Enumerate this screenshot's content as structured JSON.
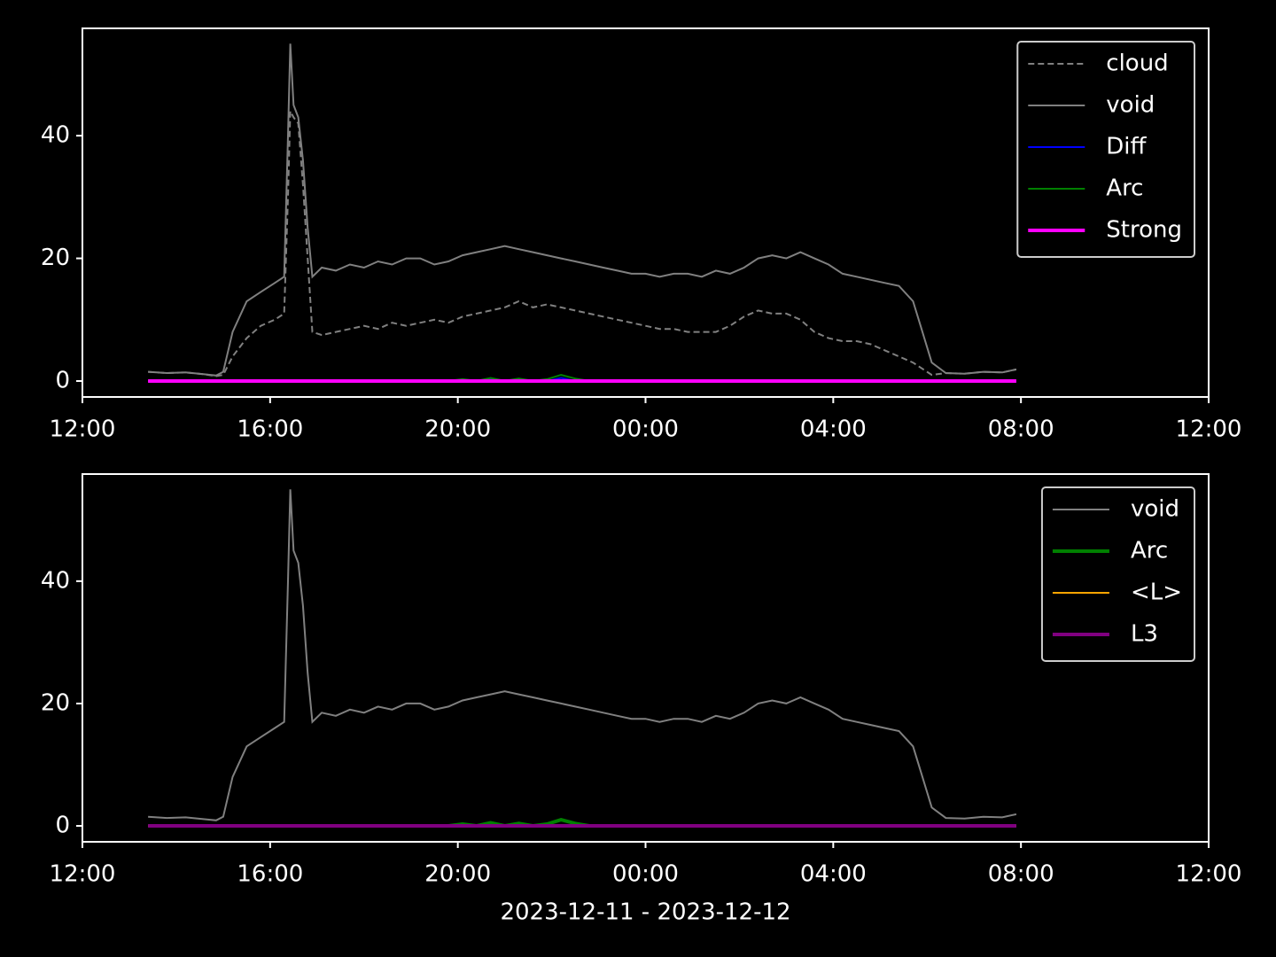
{
  "chart_data": [
    {
      "type": "line",
      "x": [
        1.4,
        1.8,
        2.2,
        2.6,
        2.85,
        3.0,
        3.2,
        3.5,
        3.8,
        4.1,
        4.3,
        4.38,
        4.43,
        4.5,
        4.6,
        4.7,
        4.8,
        4.9,
        5.1,
        5.4,
        5.7,
        6.0,
        6.3,
        6.6,
        6.9,
        7.2,
        7.5,
        7.8,
        8.1,
        8.4,
        8.7,
        9.0,
        9.3,
        9.6,
        9.9,
        10.2,
        10.5,
        10.8,
        11.1,
        11.4,
        11.7,
        12.0,
        12.3,
        12.6,
        12.9,
        13.2,
        13.5,
        13.8,
        14.1,
        14.4,
        14.7,
        15.0,
        15.3,
        15.6,
        15.9,
        16.2,
        16.5,
        16.8,
        17.1,
        17.4,
        17.7,
        17.9,
        18.1,
        18.4,
        18.8,
        19.2,
        19.6,
        19.9
      ],
      "series": [
        {
          "name": "cloud",
          "color": "#808080",
          "linestyle": "dashed",
          "width": "thin",
          "values": [
            1.5,
            1.3,
            1.4,
            1.1,
            0.8,
            1.0,
            4,
            7,
            9,
            10,
            11,
            30,
            44,
            43,
            42,
            32,
            20,
            8,
            7.5,
            8,
            8.5,
            9,
            8.5,
            9.5,
            9,
            9.5,
            10,
            9.5,
            10.5,
            11,
            11.5,
            12,
            13,
            12,
            12.5,
            12,
            11.5,
            11,
            10.5,
            10,
            9.5,
            9,
            8.5,
            8.5,
            8,
            8,
            8,
            9,
            10.5,
            11.5,
            11,
            11,
            10,
            8,
            7,
            6.5,
            6.5,
            6,
            5,
            4,
            3,
            2,
            1,
            1.3,
            1.2,
            1.5,
            1.4,
            1.9
          ]
        },
        {
          "name": "void",
          "color": "#808080",
          "linestyle": "solid",
          "width": "thin",
          "values": [
            1.5,
            1.3,
            1.4,
            1.1,
            0.9,
            1.5,
            8,
            13,
            14.5,
            16,
            17,
            40,
            55,
            45,
            43,
            36,
            25,
            17,
            18.5,
            18,
            19,
            18.5,
            19.5,
            19,
            20,
            20,
            19,
            19.5,
            20.5,
            21,
            21.5,
            22,
            21.5,
            21,
            20.5,
            20,
            19.5,
            19,
            18.5,
            18,
            17.5,
            17.5,
            17,
            17.5,
            17.5,
            17,
            18,
            17.5,
            18.5,
            20,
            20.5,
            20,
            21,
            20,
            19,
            17.5,
            17,
            16.5,
            16,
            15.5,
            13,
            8,
            3,
            1.3,
            1.2,
            1.5,
            1.4,
            1.9
          ]
        },
        {
          "name": "Diff",
          "color": "#0000ff",
          "linestyle": "solid",
          "width": "thin",
          "values": [
            0,
            0,
            0,
            0,
            0,
            0,
            0,
            0,
            0,
            0,
            0,
            0,
            0,
            0,
            0,
            0,
            0,
            0,
            0,
            0,
            0,
            0,
            0,
            0,
            0,
            0,
            0,
            0,
            0,
            0,
            0.3,
            0,
            0,
            0,
            0,
            0.5,
            0,
            0,
            0,
            0,
            0,
            0,
            0,
            0,
            0,
            0,
            0,
            0,
            0,
            0,
            0,
            0,
            0,
            0,
            0,
            0,
            0,
            0,
            0,
            0,
            0,
            0,
            0,
            0,
            0,
            0,
            0,
            0
          ]
        },
        {
          "name": "Arc",
          "color": "#008000",
          "linestyle": "solid",
          "width": "thin",
          "values": [
            0,
            0,
            0,
            0,
            0,
            0,
            0,
            0,
            0,
            0,
            0,
            0,
            0,
            0,
            0,
            0,
            0,
            0,
            0,
            0,
            0,
            0,
            0,
            0,
            0,
            0,
            0,
            0,
            0.3,
            0,
            0.5,
            0,
            0.4,
            0,
            0.3,
            1.0,
            0.4,
            0,
            0,
            0,
            0,
            0,
            0,
            0,
            0,
            0,
            0,
            0,
            0,
            0,
            0,
            0,
            0,
            0,
            0,
            0,
            0,
            0,
            0,
            0,
            0,
            0,
            0,
            0,
            0,
            0,
            0,
            0
          ]
        },
        {
          "name": "Strong",
          "color": "#ff00ff",
          "linestyle": "solid",
          "width": "thick",
          "values": [
            0,
            0,
            0,
            0,
            0,
            0,
            0,
            0,
            0,
            0,
            0,
            0,
            0,
            0,
            0,
            0,
            0,
            0,
            0,
            0,
            0,
            0,
            0,
            0,
            0,
            0,
            0,
            0,
            0,
            0,
            0,
            0,
            0,
            0,
            0,
            0,
            0,
            0,
            0,
            0,
            0,
            0,
            0,
            0,
            0,
            0,
            0,
            0,
            0,
            0,
            0,
            0,
            0,
            0,
            0,
            0,
            0,
            0,
            0,
            0,
            0,
            0,
            0,
            0,
            0,
            0,
            0,
            0
          ]
        }
      ],
      "xlim": [
        0,
        24
      ],
      "xticks": [
        {
          "value": 0,
          "label": "12:00"
        },
        {
          "value": 4,
          "label": "16:00"
        },
        {
          "value": 8,
          "label": "20:00"
        },
        {
          "value": 12,
          "label": "00:00"
        },
        {
          "value": 16,
          "label": "04:00"
        },
        {
          "value": 20,
          "label": "08:00"
        },
        {
          "value": 24,
          "label": "12:00"
        }
      ],
      "ylim": [
        -2.6,
        57.5
      ],
      "yticks": [
        0,
        20,
        40
      ],
      "legend": "upper right"
    },
    {
      "type": "line",
      "x": [
        1.4,
        1.8,
        2.2,
        2.6,
        2.85,
        3.0,
        3.2,
        3.5,
        3.8,
        4.1,
        4.3,
        4.38,
        4.43,
        4.5,
        4.6,
        4.7,
        4.8,
        4.9,
        5.1,
        5.4,
        5.7,
        6.0,
        6.3,
        6.6,
        6.9,
        7.2,
        7.5,
        7.8,
        8.1,
        8.4,
        8.7,
        9.0,
        9.3,
        9.6,
        9.9,
        10.2,
        10.5,
        10.8,
        11.1,
        11.4,
        11.7,
        12.0,
        12.3,
        12.6,
        12.9,
        13.2,
        13.5,
        13.8,
        14.1,
        14.4,
        14.7,
        15.0,
        15.3,
        15.6,
        15.9,
        16.2,
        16.5,
        16.8,
        17.1,
        17.4,
        17.7,
        17.9,
        18.1,
        18.4,
        18.8,
        19.2,
        19.6,
        19.9
      ],
      "series": [
        {
          "name": "void",
          "color": "#808080",
          "linestyle": "solid",
          "width": "thin",
          "values": [
            1.5,
            1.3,
            1.4,
            1.1,
            0.9,
            1.5,
            8,
            13,
            14.5,
            16,
            17,
            40,
            55,
            45,
            43,
            36,
            25,
            17,
            18.5,
            18,
            19,
            18.5,
            19.5,
            19,
            20,
            20,
            19,
            19.5,
            20.5,
            21,
            21.5,
            22,
            21.5,
            21,
            20.5,
            20,
            19.5,
            19,
            18.5,
            18,
            17.5,
            17.5,
            17,
            17.5,
            17.5,
            17,
            18,
            17.5,
            18.5,
            20,
            20.5,
            20,
            21,
            20,
            19,
            17.5,
            17,
            16.5,
            16,
            15.5,
            13,
            8,
            3,
            1.3,
            1.2,
            1.5,
            1.4,
            1.9
          ]
        },
        {
          "name": "Arc",
          "color": "#008000",
          "linestyle": "solid",
          "width": "thick",
          "values": [
            0,
            0,
            0,
            0,
            0,
            0,
            0,
            0,
            0,
            0,
            0,
            0,
            0,
            0,
            0,
            0,
            0,
            0,
            0,
            0,
            0,
            0,
            0,
            0,
            0,
            0,
            0,
            0,
            0.3,
            0,
            0.5,
            0,
            0.4,
            0,
            0.3,
            1.0,
            0.4,
            0,
            0,
            0,
            0,
            0,
            0,
            0,
            0,
            0,
            0,
            0,
            0,
            0,
            0,
            0,
            0,
            0,
            0,
            0,
            0,
            0,
            0,
            0,
            0,
            0,
            0,
            0,
            0,
            0,
            0,
            0
          ]
        },
        {
          "name": "<L>",
          "color": "#ffa500",
          "linestyle": "solid",
          "width": "thin",
          "values": [
            0,
            0,
            0,
            0,
            0,
            0,
            0,
            0,
            0,
            0,
            0,
            0,
            0,
            0,
            0,
            0,
            0,
            0,
            0,
            0,
            0,
            0,
            0,
            0,
            0,
            0,
            0,
            0,
            0,
            0,
            0,
            0,
            0,
            0,
            0,
            0,
            0,
            0,
            0,
            0,
            0,
            0,
            0,
            0,
            0,
            0,
            0,
            0,
            0,
            0,
            0,
            0,
            0,
            0,
            0,
            0,
            0,
            0,
            0,
            0,
            0,
            0,
            0,
            0,
            0,
            0,
            0,
            0
          ]
        },
        {
          "name": "L3",
          "color": "#800080",
          "linestyle": "solid",
          "width": "thick",
          "values": [
            0,
            0,
            0,
            0,
            0,
            0,
            0,
            0,
            0,
            0,
            0,
            0,
            0,
            0,
            0,
            0,
            0,
            0,
            0,
            0,
            0,
            0,
            0,
            0,
            0,
            0,
            0,
            0,
            0,
            0,
            0,
            0,
            0,
            0,
            0,
            0,
            0,
            0,
            0,
            0,
            0,
            0,
            0,
            0,
            0,
            0,
            0,
            0,
            0,
            0,
            0,
            0,
            0,
            0,
            0,
            0,
            0,
            0,
            0,
            0,
            0,
            0,
            0,
            0,
            0,
            0,
            0,
            0
          ]
        }
      ],
      "xlim": [
        0,
        24
      ],
      "xticks": [
        {
          "value": 0,
          "label": "12:00"
        },
        {
          "value": 4,
          "label": "16:00"
        },
        {
          "value": 8,
          "label": "20:00"
        },
        {
          "value": 12,
          "label": "00:00"
        },
        {
          "value": 16,
          "label": "04:00"
        },
        {
          "value": 20,
          "label": "08:00"
        },
        {
          "value": 24,
          "label": "12:00"
        }
      ],
      "ylim": [
        -2.6,
        57.5
      ],
      "yticks": [
        0,
        20,
        40
      ],
      "xlabel": "2023-12-11 - 2023-12-12",
      "legend": "upper right"
    }
  ]
}
